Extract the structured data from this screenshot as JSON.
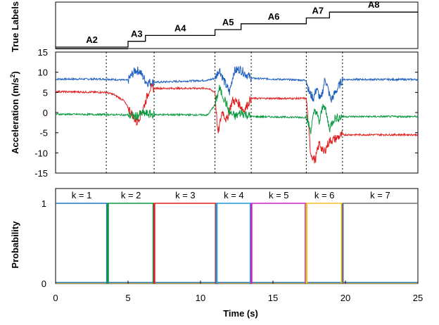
{
  "chart_data": [
    {
      "type": "line",
      "ylabel": "True Labels",
      "labels": [
        "A2",
        "A3",
        "A4",
        "A5",
        "A6",
        "A7",
        "A8"
      ],
      "segments": [
        {
          "label": "A2",
          "x_start": 0,
          "x_end": 5.0,
          "level": 1
        },
        {
          "label": "A3",
          "x_start": 5.0,
          "x_end": 6.2,
          "level": 2
        },
        {
          "label": "A4",
          "x_start": 6.2,
          "x_end": 11.0,
          "level": 3
        },
        {
          "label": "A5",
          "x_start": 11.0,
          "x_end": 12.8,
          "level": 4
        },
        {
          "label": "A6",
          "x_start": 12.8,
          "x_end": 17.3,
          "level": 5
        },
        {
          "label": "A7",
          "x_start": 17.3,
          "x_end": 18.9,
          "level": 6
        },
        {
          "label": "A8",
          "x_start": 18.9,
          "x_end": 25,
          "level": 7
        }
      ],
      "xlim": [
        0,
        25
      ]
    },
    {
      "type": "line",
      "ylabel": "Acceleration (m/s²)",
      "ylabel_base": "Acceleration (m/s",
      "ylabel_sup": "2",
      "ylabel_end": ")",
      "xlim": [
        0,
        25
      ],
      "ylim": [
        -15,
        15
      ],
      "yticks": [
        -15,
        -10,
        -5,
        0,
        5,
        10,
        15
      ],
      "vlines": [
        3.5,
        6.8,
        11.0,
        13.5,
        17.3,
        19.8
      ],
      "series": [
        {
          "color": "#1f5fbf",
          "x": [
            0,
            3.5,
            5.0,
            5.3,
            5.5,
            5.8,
            6.0,
            6.3,
            6.8,
            10.5,
            11.0,
            11.3,
            11.6,
            12.0,
            12.3,
            12.7,
            13.5,
            17.3,
            17.5,
            17.8,
            18.0,
            18.3,
            18.6,
            19.0,
            19.8,
            25
          ],
          "y": [
            8.3,
            8.3,
            8.0,
            9.5,
            10.5,
            10.3,
            9.0,
            7.5,
            7.5,
            8.0,
            8.5,
            10.8,
            8.0,
            5.0,
            10.2,
            10.8,
            8.5,
            8.0,
            5.0,
            3.5,
            6.0,
            3.0,
            8.5,
            3.0,
            8.2,
            8.2
          ]
        },
        {
          "color": "#e02020",
          "x": [
            0,
            3.5,
            4.0,
            4.7,
            5.3,
            5.6,
            6.0,
            6.5,
            6.8,
            10.5,
            11.0,
            11.2,
            11.5,
            11.8,
            12.2,
            12.6,
            13.0,
            13.5,
            17.3,
            17.6,
            17.9,
            18.2,
            18.5,
            18.9,
            19.3,
            19.8,
            25
          ],
          "y": [
            5.2,
            5.0,
            4.5,
            3.0,
            -0.5,
            -2.5,
            0.5,
            6.0,
            6.0,
            6.0,
            5.0,
            -5.5,
            0.5,
            -2.0,
            3.0,
            2.5,
            0.5,
            3.5,
            3.5,
            -10.0,
            -12.0,
            -7.5,
            -10.0,
            -7.0,
            -6.5,
            -5.5,
            -5.5
          ]
        },
        {
          "color": "#0a9a40",
          "x": [
            0,
            3.5,
            5.0,
            5.5,
            6.0,
            6.8,
            10.5,
            11.0,
            11.3,
            11.7,
            12.0,
            12.4,
            12.8,
            13.5,
            17.3,
            17.6,
            17.9,
            18.2,
            18.5,
            18.9,
            19.2,
            19.8,
            25
          ],
          "y": [
            -0.4,
            -0.5,
            -0.6,
            -1.0,
            -0.2,
            -0.5,
            -0.6,
            2.0,
            6.0,
            3.0,
            0.0,
            -1.0,
            0.0,
            -1.0,
            -1.2,
            -4.5,
            1.0,
            -2.5,
            2.5,
            -4.0,
            -1.5,
            -1.0,
            -1.0
          ]
        }
      ]
    },
    {
      "type": "line",
      "ylabel": "Probability",
      "xlabel": "Time (s)",
      "xlim": [
        0,
        25
      ],
      "ylim": [
        0,
        1
      ],
      "yticks": [
        0,
        1
      ],
      "xticks": [
        0,
        5,
        10,
        15,
        20,
        25
      ],
      "segments": [
        {
          "label": "k = 1",
          "x_start": 0,
          "x_end": 3.6,
          "color": "#1f77c4"
        },
        {
          "label": "k = 2",
          "x_start": 3.6,
          "x_end": 6.8,
          "color": "#0a9a40"
        },
        {
          "label": "k = 3",
          "x_start": 6.8,
          "x_end": 11.1,
          "color": "#e02020"
        },
        {
          "label": "k = 4",
          "x_start": 11.1,
          "x_end": 13.5,
          "color": "#1f9adc"
        },
        {
          "label": "k = 5",
          "x_start": 13.5,
          "x_end": 17.3,
          "color": "#d020c0"
        },
        {
          "label": "k = 6",
          "x_start": 17.3,
          "x_end": 19.8,
          "color": "#f0c020"
        },
        {
          "label": "k = 7",
          "x_start": 19.8,
          "x_end": 25,
          "color": "#707070"
        }
      ]
    }
  ]
}
